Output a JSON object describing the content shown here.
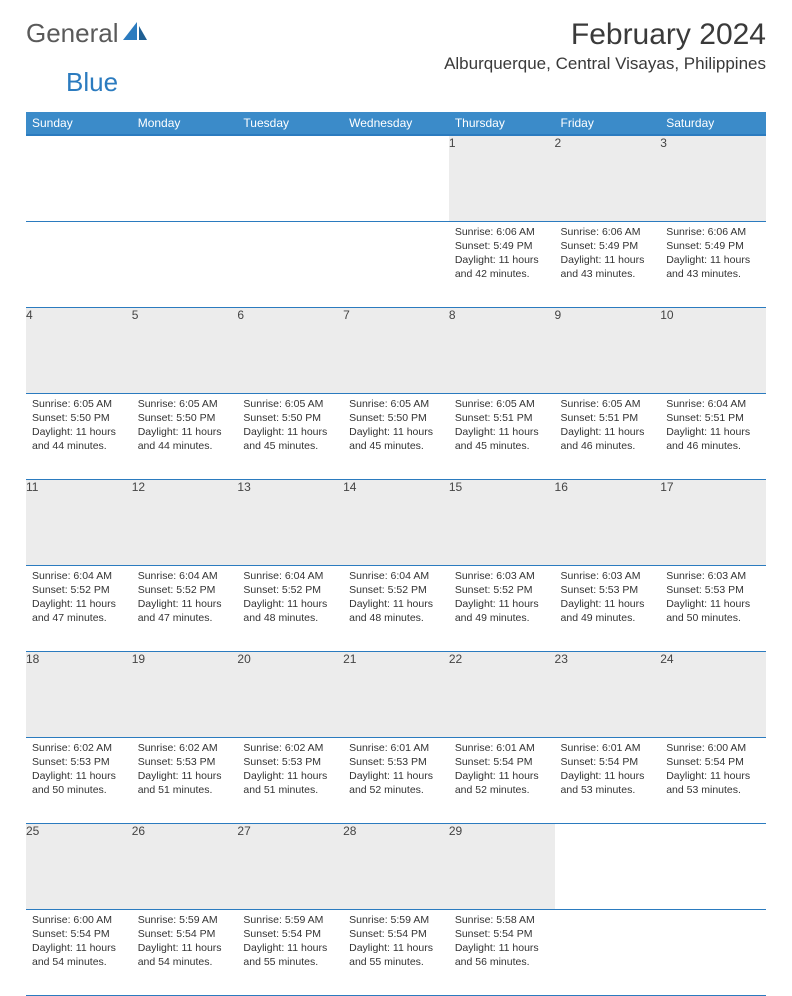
{
  "brand": {
    "general": "General",
    "blue": "Blue"
  },
  "title": "February 2024",
  "location": "Alburquerque, Central Visayas, Philippines",
  "dayNames": [
    "Sunday",
    "Monday",
    "Tuesday",
    "Wednesday",
    "Thursday",
    "Friday",
    "Saturday"
  ],
  "style": {
    "header_bg": "#3b8bc9",
    "header_accent": "#2b7bbf",
    "daynum_bg": "#ececec",
    "text_color": "#333333",
    "title_color": "#3a3a3a",
    "cell_fontsize": 10.5,
    "header_fontsize": 12,
    "title_fontsize": 30,
    "location_fontsize": 17
  },
  "weeks": [
    [
      null,
      null,
      null,
      null,
      {
        "n": "1",
        "sr": "6:06 AM",
        "ss": "5:49 PM",
        "dl": "11 hours and 42 minutes."
      },
      {
        "n": "2",
        "sr": "6:06 AM",
        "ss": "5:49 PM",
        "dl": "11 hours and 43 minutes."
      },
      {
        "n": "3",
        "sr": "6:06 AM",
        "ss": "5:49 PM",
        "dl": "11 hours and 43 minutes."
      }
    ],
    [
      {
        "n": "4",
        "sr": "6:05 AM",
        "ss": "5:50 PM",
        "dl": "11 hours and 44 minutes."
      },
      {
        "n": "5",
        "sr": "6:05 AM",
        "ss": "5:50 PM",
        "dl": "11 hours and 44 minutes."
      },
      {
        "n": "6",
        "sr": "6:05 AM",
        "ss": "5:50 PM",
        "dl": "11 hours and 45 minutes."
      },
      {
        "n": "7",
        "sr": "6:05 AM",
        "ss": "5:50 PM",
        "dl": "11 hours and 45 minutes."
      },
      {
        "n": "8",
        "sr": "6:05 AM",
        "ss": "5:51 PM",
        "dl": "11 hours and 45 minutes."
      },
      {
        "n": "9",
        "sr": "6:05 AM",
        "ss": "5:51 PM",
        "dl": "11 hours and 46 minutes."
      },
      {
        "n": "10",
        "sr": "6:04 AM",
        "ss": "5:51 PM",
        "dl": "11 hours and 46 minutes."
      }
    ],
    [
      {
        "n": "11",
        "sr": "6:04 AM",
        "ss": "5:52 PM",
        "dl": "11 hours and 47 minutes."
      },
      {
        "n": "12",
        "sr": "6:04 AM",
        "ss": "5:52 PM",
        "dl": "11 hours and 47 minutes."
      },
      {
        "n": "13",
        "sr": "6:04 AM",
        "ss": "5:52 PM",
        "dl": "11 hours and 48 minutes."
      },
      {
        "n": "14",
        "sr": "6:04 AM",
        "ss": "5:52 PM",
        "dl": "11 hours and 48 minutes."
      },
      {
        "n": "15",
        "sr": "6:03 AM",
        "ss": "5:52 PM",
        "dl": "11 hours and 49 minutes."
      },
      {
        "n": "16",
        "sr": "6:03 AM",
        "ss": "5:53 PM",
        "dl": "11 hours and 49 minutes."
      },
      {
        "n": "17",
        "sr": "6:03 AM",
        "ss": "5:53 PM",
        "dl": "11 hours and 50 minutes."
      }
    ],
    [
      {
        "n": "18",
        "sr": "6:02 AM",
        "ss": "5:53 PM",
        "dl": "11 hours and 50 minutes."
      },
      {
        "n": "19",
        "sr": "6:02 AM",
        "ss": "5:53 PM",
        "dl": "11 hours and 51 minutes."
      },
      {
        "n": "20",
        "sr": "6:02 AM",
        "ss": "5:53 PM",
        "dl": "11 hours and 51 minutes."
      },
      {
        "n": "21",
        "sr": "6:01 AM",
        "ss": "5:53 PM",
        "dl": "11 hours and 52 minutes."
      },
      {
        "n": "22",
        "sr": "6:01 AM",
        "ss": "5:54 PM",
        "dl": "11 hours and 52 minutes."
      },
      {
        "n": "23",
        "sr": "6:01 AM",
        "ss": "5:54 PM",
        "dl": "11 hours and 53 minutes."
      },
      {
        "n": "24",
        "sr": "6:00 AM",
        "ss": "5:54 PM",
        "dl": "11 hours and 53 minutes."
      }
    ],
    [
      {
        "n": "25",
        "sr": "6:00 AM",
        "ss": "5:54 PM",
        "dl": "11 hours and 54 minutes."
      },
      {
        "n": "26",
        "sr": "5:59 AM",
        "ss": "5:54 PM",
        "dl": "11 hours and 54 minutes."
      },
      {
        "n": "27",
        "sr": "5:59 AM",
        "ss": "5:54 PM",
        "dl": "11 hours and 55 minutes."
      },
      {
        "n": "28",
        "sr": "5:59 AM",
        "ss": "5:54 PM",
        "dl": "11 hours and 55 minutes."
      },
      {
        "n": "29",
        "sr": "5:58 AM",
        "ss": "5:54 PM",
        "dl": "11 hours and 56 minutes."
      },
      null,
      null
    ]
  ]
}
